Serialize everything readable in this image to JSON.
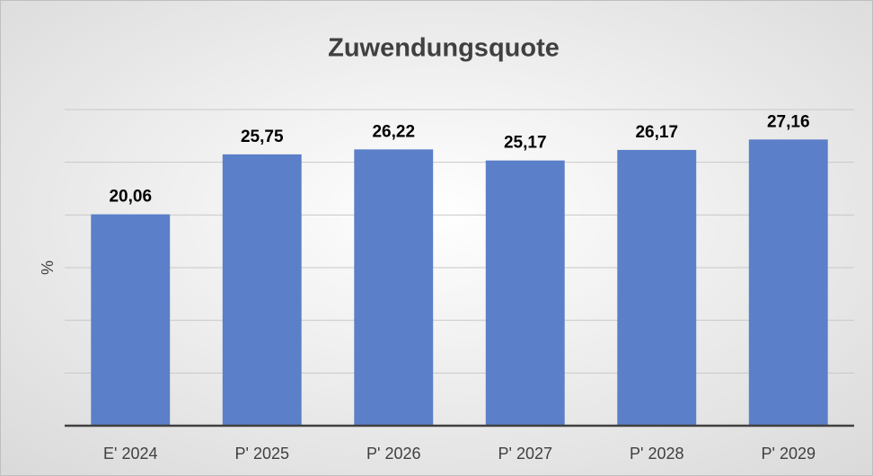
{
  "chart_data": {
    "type": "bar",
    "title": "Zuwendungsquote",
    "y_label": "%",
    "categories": [
      "E' 2024",
      "P' 2025",
      "P' 2026",
      "P' 2027",
      "P' 2028",
      "P' 2029"
    ],
    "values": [
      20.06,
      25.75,
      26.22,
      25.17,
      26.17,
      27.16
    ],
    "value_labels": [
      "20,06",
      "25,75",
      "26,22",
      "25,17",
      "26,17",
      "27,16"
    ],
    "color": "#5b7fc8",
    "ylim": [
      0,
      30
    ],
    "yticks": [
      0,
      5,
      10,
      15,
      20,
      25,
      30
    ],
    "grid": true
  }
}
